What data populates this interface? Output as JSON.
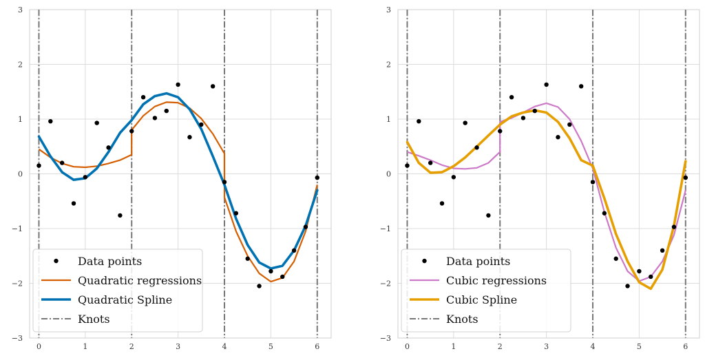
{
  "chart_data": [
    {
      "type": "line",
      "panel": "left",
      "title": "",
      "xlabel": "",
      "ylabel": "",
      "xlim": [
        -0.2,
        6.3
      ],
      "ylim": [
        -3,
        3
      ],
      "xticks": [
        0,
        1,
        2,
        3,
        4,
        5,
        6
      ],
      "yticks": [
        -3,
        -2,
        -1,
        0,
        1,
        2,
        3
      ],
      "xtick_labels": [
        "0",
        "1",
        "2",
        "3",
        "4",
        "5",
        "6"
      ],
      "ytick_labels": [
        "−3",
        "−2",
        "−1",
        "0",
        "1",
        "2",
        "3"
      ],
      "grid": true,
      "knots": [
        0,
        2,
        4,
        6
      ],
      "data_points": {
        "x": [
          0,
          0.25,
          0.5,
          0.75,
          1.0,
          1.25,
          1.5,
          1.75,
          2.0,
          2.25,
          2.5,
          2.75,
          3.0,
          3.25,
          3.5,
          3.75,
          4.0,
          4.25,
          4.5,
          4.75,
          5.0,
          5.25,
          5.5,
          5.75,
          6.0
        ],
        "y": [
          0.15,
          0.96,
          0.2,
          -0.54,
          -0.06,
          0.93,
          0.48,
          -0.76,
          0.78,
          1.4,
          1.02,
          1.15,
          1.63,
          0.67,
          0.9,
          1.6,
          -0.15,
          -0.72,
          -1.55,
          -2.05,
          -1.78,
          -1.88,
          -1.4,
          -0.97,
          -0.07
        ]
      },
      "regressions": [
        {
          "x": [
            0,
            0.25,
            0.5,
            0.75,
            1.0,
            1.25,
            1.5,
            1.75,
            2.0
          ],
          "y": [
            0.45,
            0.3,
            0.19,
            0.13,
            0.12,
            0.14,
            0.19,
            0.25,
            0.35
          ]
        },
        {
          "x": [
            2.0,
            2.25,
            2.5,
            2.75,
            3.0,
            3.25,
            3.5,
            3.75,
            4.0
          ],
          "y": [
            0.8,
            1.06,
            1.23,
            1.31,
            1.3,
            1.2,
            1.01,
            0.73,
            0.37
          ]
        },
        {
          "x": [
            4.0,
            4.25,
            4.5,
            4.75,
            5.0,
            5.25,
            5.5,
            5.75,
            6.0
          ],
          "y": [
            -0.43,
            -1.05,
            -1.5,
            -1.82,
            -1.97,
            -1.9,
            -1.6,
            -1.05,
            -0.2
          ]
        }
      ],
      "spline": {
        "x": [
          0,
          0.25,
          0.5,
          0.75,
          1.0,
          1.25,
          1.5,
          1.75,
          2.0,
          2.25,
          2.5,
          2.75,
          3.0,
          3.25,
          3.5,
          3.75,
          4.0,
          4.25,
          4.5,
          4.75,
          5.0,
          5.25,
          5.5,
          5.75,
          6.0
        ],
        "y": [
          0.68,
          0.32,
          0.03,
          -0.11,
          -0.08,
          0.1,
          0.4,
          0.75,
          0.98,
          1.27,
          1.42,
          1.47,
          1.4,
          1.18,
          0.82,
          0.32,
          -0.2,
          -0.82,
          -1.3,
          -1.62,
          -1.73,
          -1.68,
          -1.4,
          -0.95,
          -0.3
        ]
      },
      "legend": {
        "placement": "bottom-left",
        "entries": [
          "Data points",
          "Quadratic regressions",
          "Quadratic Spline",
          "Knots"
        ]
      },
      "colors": {
        "points": "#000000",
        "regression": "#d55e00",
        "spline": "#0072b2",
        "knots": "#777777"
      }
    },
    {
      "type": "line",
      "panel": "right",
      "title": "",
      "xlabel": "",
      "ylabel": "",
      "xlim": [
        -0.2,
        6.3
      ],
      "ylim": [
        -3,
        3
      ],
      "xticks": [
        0,
        1,
        2,
        3,
        4,
        5,
        6
      ],
      "yticks": [
        -3,
        -2,
        -1,
        0,
        1,
        2,
        3
      ],
      "xtick_labels": [
        "0",
        "1",
        "2",
        "3",
        "4",
        "5",
        "6"
      ],
      "ytick_labels": [
        "−3",
        "−2",
        "−1",
        "0",
        "1",
        "2",
        "3"
      ],
      "grid": true,
      "knots": [
        0,
        2,
        4,
        6
      ],
      "data_points": {
        "x": [
          0,
          0.25,
          0.5,
          0.75,
          1.0,
          1.25,
          1.5,
          1.75,
          2.0,
          2.25,
          2.5,
          2.75,
          3.0,
          3.25,
          3.5,
          3.75,
          4.0,
          4.25,
          4.5,
          4.75,
          5.0,
          5.25,
          5.5,
          5.75,
          6.0
        ],
        "y": [
          0.15,
          0.96,
          0.2,
          -0.54,
          -0.06,
          0.93,
          0.48,
          -0.76,
          0.78,
          1.4,
          1.02,
          1.15,
          1.63,
          0.67,
          0.9,
          1.6,
          -0.15,
          -0.72,
          -1.55,
          -2.05,
          -1.78,
          -1.88,
          -1.4,
          -0.97,
          -0.07
        ]
      },
      "regressions": [
        {
          "x": [
            0,
            0.25,
            0.5,
            0.75,
            1.0,
            1.25,
            1.5,
            1.75,
            2.0
          ],
          "y": [
            0.4,
            0.33,
            0.25,
            0.16,
            0.1,
            0.09,
            0.11,
            0.2,
            0.4
          ]
        },
        {
          "x": [
            2.0,
            2.25,
            2.5,
            2.75,
            3.0,
            3.25,
            3.5,
            3.75,
            4.0
          ],
          "y": [
            0.95,
            1.02,
            1.12,
            1.23,
            1.29,
            1.22,
            1.0,
            0.6,
            0.1
          ]
        },
        {
          "x": [
            4.0,
            4.25,
            4.5,
            4.75,
            5.0,
            5.25,
            5.5,
            5.75,
            6.0
          ],
          "y": [
            0.1,
            -0.7,
            -1.35,
            -1.78,
            -1.96,
            -1.88,
            -1.6,
            -1.12,
            -0.3
          ]
        }
      ],
      "spline": {
        "x": [
          0,
          0.25,
          0.5,
          0.75,
          1.0,
          1.25,
          1.5,
          1.75,
          2.0,
          2.25,
          2.5,
          2.75,
          3.0,
          3.25,
          3.5,
          3.75,
          4.0,
          4.25,
          4.5,
          4.75,
          5.0,
          5.25,
          5.5,
          5.75,
          6.0
        ],
        "y": [
          0.58,
          0.2,
          0.02,
          0.03,
          0.14,
          0.3,
          0.5,
          0.7,
          0.9,
          1.05,
          1.12,
          1.16,
          1.12,
          0.95,
          0.65,
          0.25,
          0.15,
          -0.45,
          -1.1,
          -1.6,
          -1.98,
          -2.1,
          -1.75,
          -0.95,
          0.23
        ]
      },
      "legend": {
        "placement": "bottom-left",
        "entries": [
          "Data points",
          "Cubic regressions",
          "Cubic Spline",
          "Knots"
        ]
      },
      "colors": {
        "points": "#000000",
        "regression": "#cc79c7",
        "spline": "#e69f00",
        "knots": "#777777"
      }
    }
  ]
}
